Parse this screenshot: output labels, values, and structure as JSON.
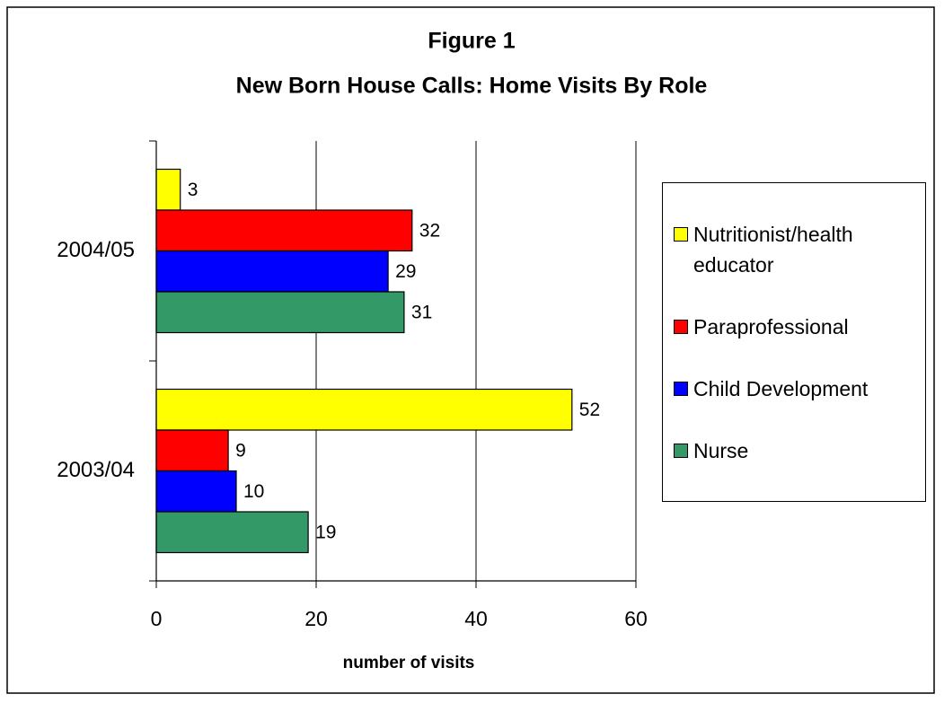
{
  "chart_data": {
    "type": "hbar",
    "title": "Figure 1",
    "subtitle": "New Born House Calls: Home Visits By Role",
    "x_label": "number of visits",
    "categories": [
      "2004/05",
      "2003/04"
    ],
    "series": [
      {
        "name": "Nutritionist/health educator",
        "color": "#ffff00",
        "values": [
          3,
          52
        ]
      },
      {
        "name": "Paraprofessional",
        "color": "#ff0000",
        "values": [
          32,
          9
        ]
      },
      {
        "name": "Child Development",
        "color": "#0000ff",
        "values": [
          29,
          10
        ]
      },
      {
        "name": "Nurse",
        "color": "#339966",
        "values": [
          31,
          19
        ]
      }
    ],
    "xlim": [
      0,
      60
    ],
    "xticks": [
      0,
      20,
      40,
      60
    ],
    "grid": true,
    "legend": "right"
  }
}
